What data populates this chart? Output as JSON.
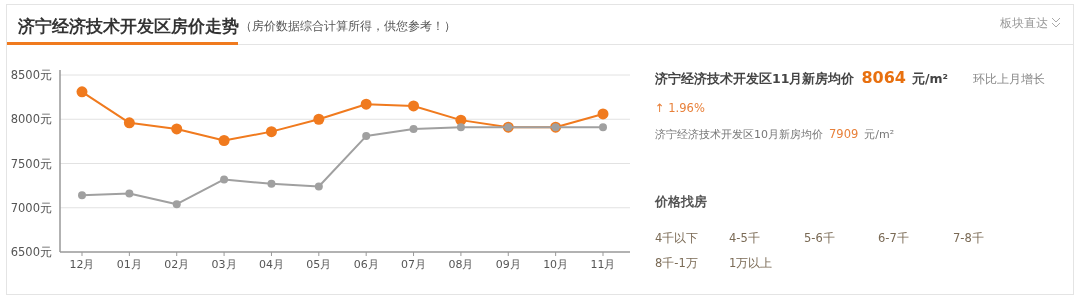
{
  "chart_data": [
    {
      "type": "line",
      "title": "济宁经济技术开发区房价走势",
      "subtitle": "（房价数据综合计算所得，供您参考！）",
      "annotations": [
        "板块直达"
      ],
      "categories": [
        "12月",
        "01月",
        "02月",
        "03月",
        "04月",
        "05月",
        "06月",
        "07月",
        "08月",
        "09月",
        "10月",
        "11月"
      ],
      "series": [
        {
          "color": "#f07a1e",
          "values": [
            8310,
            7960,
            7890,
            7760,
            7860,
            8000,
            8170,
            8150,
            7990,
            7910,
            7910,
            8060
          ]
        },
        {
          "color": "#a0a0a0",
          "values": [
            7140,
            7160,
            7040,
            7320,
            7270,
            7240,
            7810,
            7890,
            7910,
            7910,
            7910,
            7910
          ]
        }
      ],
      "ylim": [
        6500,
        8500
      ],
      "yticks": [
        {
          "value": 6500,
          "label": "6500元"
        },
        {
          "value": 7000,
          "label": "7000元"
        },
        {
          "value": 7500,
          "label": "7500元"
        },
        {
          "value": 8000,
          "label": "8000元"
        },
        {
          "value": 8500,
          "label": "8500元"
        }
      ],
      "grid": "y",
      "marker": "circle",
      "line_style": "solid"
    },
    {
      "type": "other",
      "annotations": [
        "济宁经济技术开发区11月新房均价",
        "8064",
        "元/m²",
        "环比上月增长",
        "↑ 1.96%",
        "济宁经济技术开发区10月新房均价",
        "7909",
        "元/m²",
        "价格找房",
        "4千以下",
        "4-5千",
        "5-6千",
        "6-7千",
        "7-8千",
        "8千-1万",
        "1万以上"
      ]
    }
  ]
}
